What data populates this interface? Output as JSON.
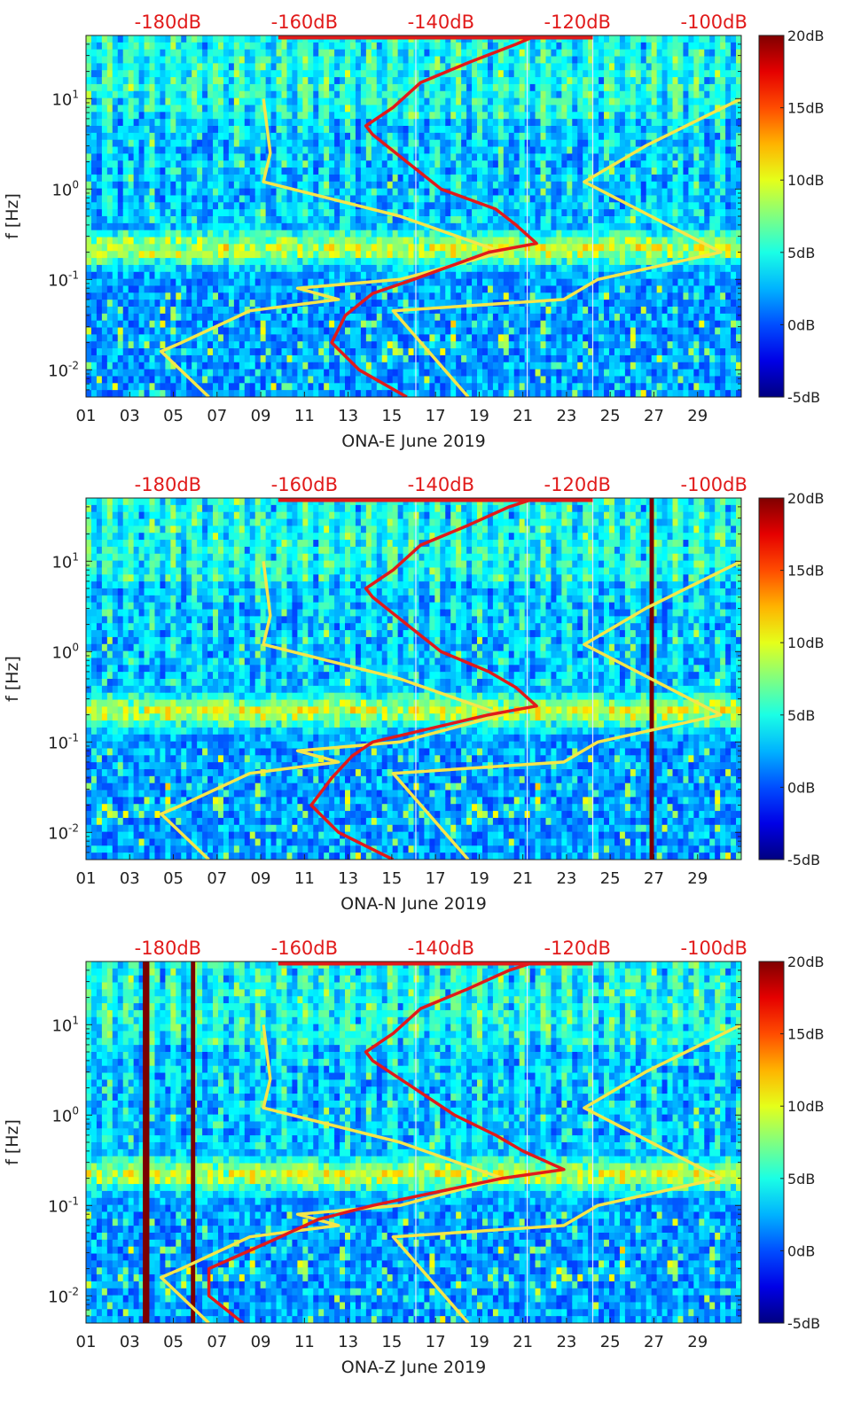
{
  "chart_data": {
    "type": "heatmap",
    "month_label": "June 2019",
    "x_ticks": [
      "01",
      "03",
      "05",
      "07",
      "09",
      "11",
      "13",
      "15",
      "17",
      "19",
      "21",
      "23",
      "25",
      "27",
      "29"
    ],
    "x_tick_days": [
      1,
      3,
      5,
      7,
      9,
      11,
      13,
      15,
      17,
      19,
      21,
      23,
      25,
      27,
      29
    ],
    "xlim_days": [
      1,
      31
    ],
    "ylabel": "f [Hz]",
    "ylim_hz": [
      0.005,
      50
    ],
    "y_ticks": [
      {
        "base": "10",
        "exp": "1",
        "value": 10
      },
      {
        "base": "10",
        "exp": "0",
        "value": 1
      },
      {
        "base": "10",
        "exp": "-1",
        "value": 0.1
      },
      {
        "base": "10",
        "exp": "-2",
        "value": 0.01
      }
    ],
    "top_axis_labels": [
      "-180dB",
      "-160dB",
      "-140dB",
      "-120dB",
      "-100dB"
    ],
    "top_axis_db": [
      -180,
      -160,
      -140,
      -120,
      -100
    ],
    "top_axis_range_db": [
      -192,
      -96
    ],
    "colorbar": {
      "labels": [
        "20dB",
        "15dB",
        "10dB",
        "5dB",
        "0dB",
        "-5dB"
      ],
      "values": [
        20,
        15,
        10,
        5,
        0,
        -5
      ],
      "range": [
        -5,
        20
      ],
      "colormap": "jet"
    },
    "colors": {
      "yellow_curve": "#f5e64a",
      "red_curve": "#e11a1a",
      "top_label": "#e11a1a"
    },
    "noise_model_curves": {
      "low_noise_yellow": [
        [
          0.005,
          -174
        ],
        [
          0.016,
          -181
        ],
        [
          0.02,
          -178
        ],
        [
          0.045,
          -168
        ],
        [
          0.06,
          -155
        ],
        [
          0.08,
          -161
        ],
        [
          0.1,
          -146
        ],
        [
          0.2,
          -131
        ],
        [
          0.5,
          -146
        ],
        [
          1.2,
          -166
        ],
        [
          2.5,
          -165
        ],
        [
          10,
          -166
        ]
      ],
      "high_noise_yellow": [
        [
          0.005,
          -136
        ],
        [
          0.045,
          -147
        ],
        [
          0.06,
          -122
        ],
        [
          0.1,
          -117
        ],
        [
          0.2,
          -99
        ],
        [
          1.2,
          -119
        ],
        [
          3,
          -110
        ],
        [
          10,
          -96
        ]
      ]
    },
    "panels": [
      {
        "xlabel": "ONA-E June 2019",
        "red_psd_curve": [
          [
            0.005,
            -145
          ],
          [
            0.01,
            -152
          ],
          [
            0.02,
            -156
          ],
          [
            0.04,
            -154
          ],
          [
            0.07,
            -150
          ],
          [
            0.1,
            -144
          ],
          [
            0.2,
            -133
          ],
          [
            0.25,
            -126
          ],
          [
            0.4,
            -129
          ],
          [
            0.6,
            -132
          ],
          [
            1,
            -140
          ],
          [
            2,
            -145
          ],
          [
            4,
            -150
          ],
          [
            5,
            -151
          ],
          [
            8,
            -147
          ],
          [
            15,
            -143
          ],
          [
            25,
            -136
          ],
          [
            40,
            -129
          ],
          [
            50,
            -126
          ]
        ],
        "dark_columns": [],
        "vertical_lines": [
          16.1,
          21.2,
          24.2
        ]
      },
      {
        "xlabel": "ONA-N June 2019",
        "red_psd_curve": [
          [
            0.005,
            -147
          ],
          [
            0.01,
            -155
          ],
          [
            0.02,
            -159
          ],
          [
            0.04,
            -156
          ],
          [
            0.07,
            -153
          ],
          [
            0.1,
            -150
          ],
          [
            0.2,
            -133
          ],
          [
            0.25,
            -126
          ],
          [
            0.4,
            -129
          ],
          [
            0.6,
            -133
          ],
          [
            1,
            -140
          ],
          [
            2,
            -145
          ],
          [
            4,
            -150
          ],
          [
            5,
            -151
          ],
          [
            8,
            -147
          ],
          [
            15,
            -143
          ],
          [
            25,
            -136
          ],
          [
            40,
            -130
          ],
          [
            50,
            -126
          ]
        ],
        "dark_columns": [
          [
            26.8,
            27.0
          ]
        ],
        "vertical_lines": [
          16.1,
          21.2,
          24.2
        ]
      },
      {
        "xlabel": "ONA-Z June 2019",
        "red_psd_curve": [
          [
            0.005,
            -169
          ],
          [
            0.01,
            -174
          ],
          [
            0.02,
            -174
          ],
          [
            0.04,
            -165
          ],
          [
            0.07,
            -158
          ],
          [
            0.1,
            -150
          ],
          [
            0.2,
            -131
          ],
          [
            0.25,
            -122
          ],
          [
            0.4,
            -128
          ],
          [
            0.6,
            -132
          ],
          [
            1,
            -138
          ],
          [
            2,
            -144
          ],
          [
            4,
            -150
          ],
          [
            5,
            -151
          ],
          [
            8,
            -147
          ],
          [
            15,
            -143
          ],
          [
            25,
            -136
          ],
          [
            40,
            -130
          ],
          [
            50,
            -126
          ]
        ],
        "dark_columns": [
          [
            3.6,
            3.9
          ],
          [
            5.8,
            6.0
          ]
        ],
        "vertical_lines": [
          16.1,
          21.2,
          24.2
        ]
      }
    ]
  }
}
